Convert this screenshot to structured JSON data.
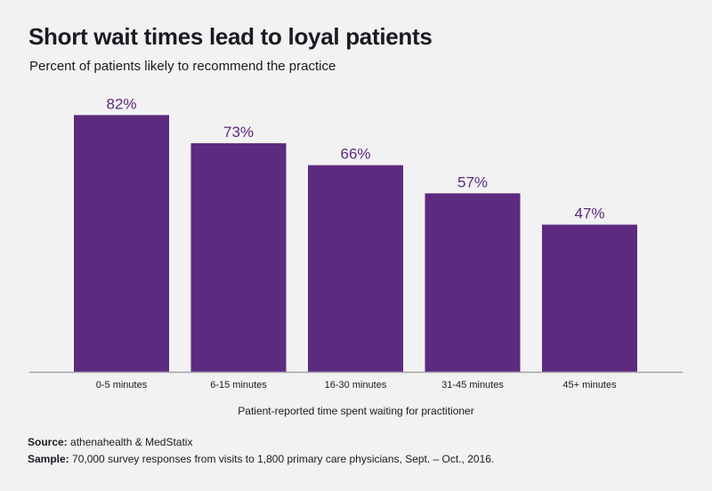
{
  "chart_data": {
    "type": "bar",
    "title": "Short wait times lead to loyal patients",
    "subtitle": "Percent of patients likely to recommend the practice",
    "categories": [
      "0-5 minutes",
      "6-15 minutes",
      "16-30 minutes",
      "31-45 minutes",
      "45+ minutes"
    ],
    "values": [
      82,
      73,
      66,
      57,
      47
    ],
    "data_labels": [
      "82%",
      "73%",
      "66%",
      "57%",
      "47%"
    ],
    "xlabel": "Patient-reported time spent waiting for practitioner",
    "ylabel": "",
    "ylim": [
      0,
      100
    ],
    "grid": false,
    "colors": {
      "bar": "#5c2a7e",
      "label": "#5c2a7e",
      "axis": "#a3a3ab"
    }
  },
  "footer": {
    "source_label": "Source:",
    "source_text": "athenahealth & MedStatix",
    "sample_label": "Sample:",
    "sample_text": "70,000 survey responses from visits to 1,800 primary care physicians, Sept. – Oct., 2016."
  }
}
